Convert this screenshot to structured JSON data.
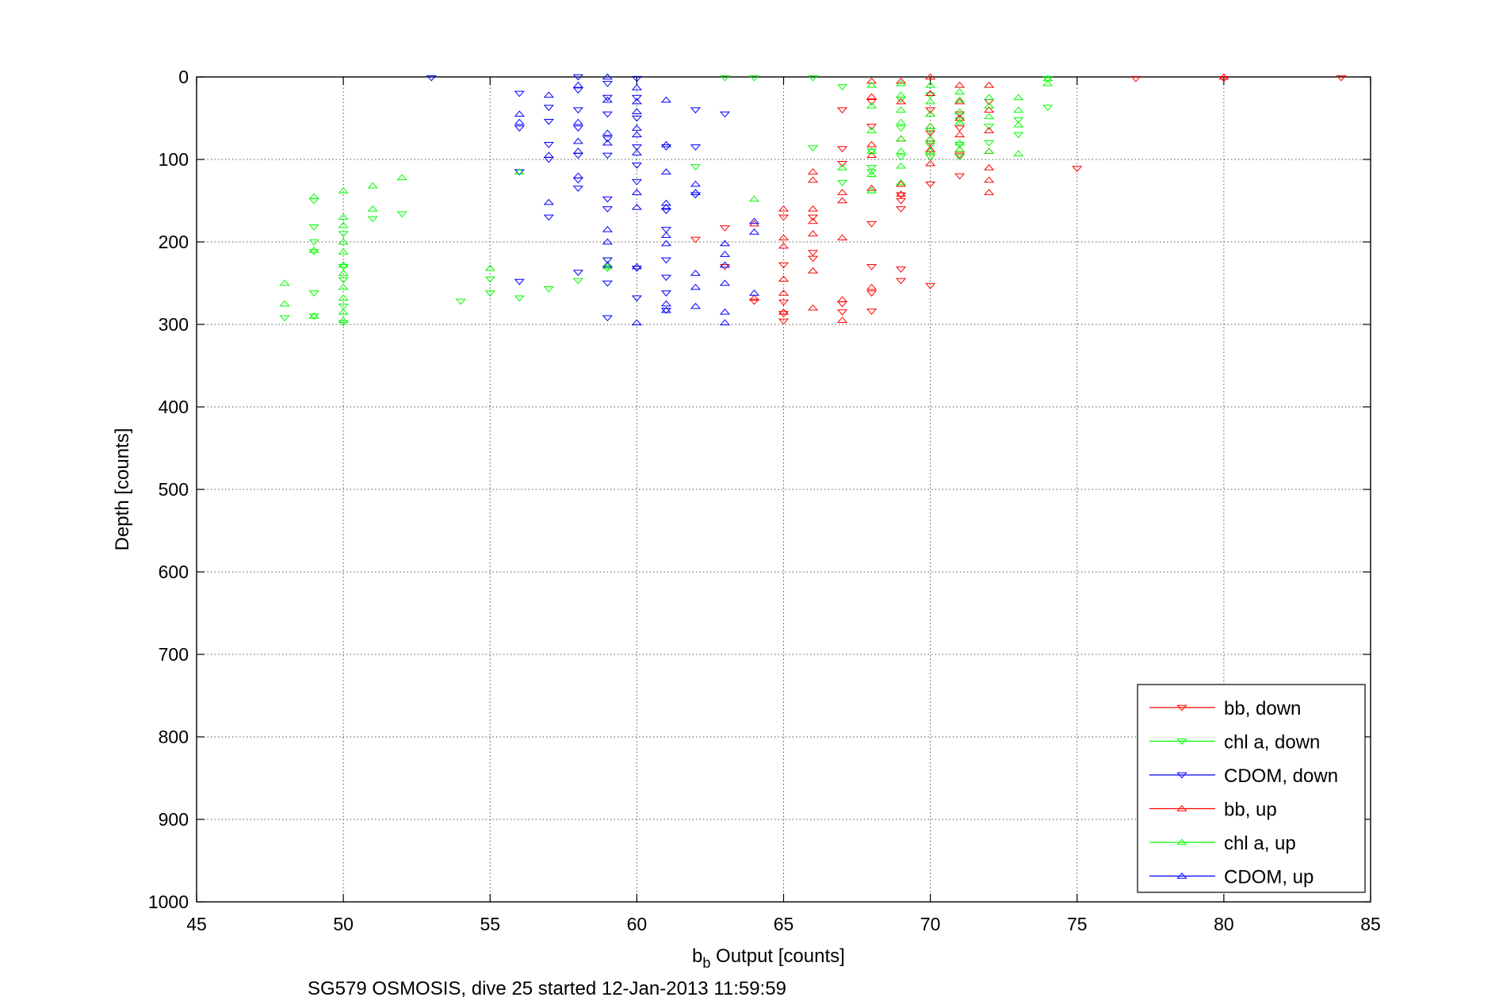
{
  "chart_data": {
    "type": "scatter",
    "xlabel_base": "b",
    "xlabel_sub": "b",
    "xlabel_rest": " Output [counts]",
    "ylabel": "Depth [counts]",
    "caption": "SG579 OSMOSIS, dive 25 started 12-Jan-2013 11:59:59",
    "xlim": [
      45,
      85
    ],
    "ylim": [
      0,
      1000
    ],
    "y_reversed": true,
    "grid": true,
    "legend_position": "bottom-right",
    "x_ticks": [
      "45",
      "50",
      "55",
      "60",
      "65",
      "70",
      "75",
      "80",
      "85"
    ],
    "y_ticks": [
      "0",
      "100",
      "200",
      "300",
      "400",
      "500",
      "600",
      "700",
      "800",
      "900",
      "1000"
    ],
    "series": [
      {
        "name": "bb, down",
        "color": "#ff0000",
        "marker": "down",
        "points": [
          [
            84,
            1
          ],
          [
            80,
            2
          ],
          [
            77,
            2
          ],
          [
            75,
            111
          ],
          [
            72,
            30
          ],
          [
            71,
            45
          ],
          [
            71,
            62
          ],
          [
            71,
            95
          ],
          [
            71,
            120
          ],
          [
            70,
            40
          ],
          [
            70,
            68
          ],
          [
            70,
            80
          ],
          [
            70,
            97
          ],
          [
            70,
            130
          ],
          [
            70,
            253
          ],
          [
            69,
            143
          ],
          [
            69,
            150
          ],
          [
            69,
            160
          ],
          [
            69,
            233
          ],
          [
            69,
            247
          ],
          [
            68,
            30
          ],
          [
            68,
            60
          ],
          [
            68,
            178
          ],
          [
            68,
            230
          ],
          [
            68,
            262
          ],
          [
            68,
            284
          ],
          [
            67,
            40
          ],
          [
            67,
            87
          ],
          [
            67,
            105
          ],
          [
            67,
            275
          ],
          [
            67,
            285
          ],
          [
            66,
            170
          ],
          [
            66,
            213
          ],
          [
            66,
            220
          ],
          [
            65,
            170
          ],
          [
            65,
            228
          ],
          [
            65,
            273
          ],
          [
            65,
            287
          ],
          [
            65,
            296
          ],
          [
            64,
            272
          ],
          [
            63,
            183
          ],
          [
            63,
            230
          ],
          [
            62,
            197
          ]
        ]
      },
      {
        "name": "chl a, down",
        "color": "#00ff00",
        "marker": "down",
        "points": [
          [
            74,
            2
          ],
          [
            74,
            37
          ],
          [
            73,
            52
          ],
          [
            73,
            70
          ],
          [
            72,
            60
          ],
          [
            72,
            80
          ],
          [
            71,
            52
          ],
          [
            71,
            82
          ],
          [
            71,
            97
          ],
          [
            70,
            22
          ],
          [
            70,
            65
          ],
          [
            70,
            83
          ],
          [
            70,
            97
          ],
          [
            69,
            27
          ],
          [
            69,
            62
          ],
          [
            69,
            97
          ],
          [
            68,
            90
          ],
          [
            68,
            110
          ],
          [
            68,
            115
          ],
          [
            67,
            12
          ],
          [
            67,
            128
          ],
          [
            66,
            1
          ],
          [
            66,
            86
          ],
          [
            64,
            1
          ],
          [
            63,
            1
          ],
          [
            62,
            109
          ],
          [
            59,
            222
          ],
          [
            59,
            232
          ],
          [
            58,
            247
          ],
          [
            57,
            257
          ],
          [
            56,
            268
          ],
          [
            55,
            245
          ],
          [
            55,
            262
          ],
          [
            54,
            272
          ],
          [
            52,
            166
          ],
          [
            51,
            172
          ],
          [
            50,
            190
          ],
          [
            50,
            230
          ],
          [
            50,
            246
          ],
          [
            50,
            278
          ],
          [
            50,
            298
          ],
          [
            49,
            150
          ],
          [
            49,
            182
          ],
          [
            49,
            200
          ],
          [
            49,
            212
          ],
          [
            49,
            262
          ],
          [
            49,
            290
          ],
          [
            48,
            292
          ]
        ]
      },
      {
        "name": "CDOM, down",
        "color": "#0000ff",
        "marker": "down",
        "points": [
          [
            63,
            45
          ],
          [
            62,
            40
          ],
          [
            62,
            85
          ],
          [
            62,
            143
          ],
          [
            61,
            85
          ],
          [
            61,
            162
          ],
          [
            61,
            185
          ],
          [
            61,
            222
          ],
          [
            61,
            243
          ],
          [
            61,
            262
          ],
          [
            61,
            283
          ],
          [
            60,
            2
          ],
          [
            60,
            25
          ],
          [
            60,
            50
          ],
          [
            60,
            85
          ],
          [
            60,
            107
          ],
          [
            60,
            127
          ],
          [
            60,
            232
          ],
          [
            60,
            268
          ],
          [
            59,
            8
          ],
          [
            59,
            25
          ],
          [
            59,
            45
          ],
          [
            59,
            75
          ],
          [
            59,
            95
          ],
          [
            59,
            148
          ],
          [
            59,
            160
          ],
          [
            59,
            222
          ],
          [
            59,
            250
          ],
          [
            59,
            292
          ],
          [
            58,
            0
          ],
          [
            58,
            16
          ],
          [
            58,
            40
          ],
          [
            58,
            62
          ],
          [
            58,
            95
          ],
          [
            58,
            125
          ],
          [
            58,
            135
          ],
          [
            58,
            237
          ],
          [
            57,
            37
          ],
          [
            57,
            54
          ],
          [
            57,
            82
          ],
          [
            57,
            100
          ],
          [
            57,
            170
          ],
          [
            56,
            20
          ],
          [
            56,
            62
          ],
          [
            56,
            115
          ],
          [
            56,
            248
          ],
          [
            53,
            1
          ]
        ]
      },
      {
        "name": "bb, up",
        "color": "#ff0000",
        "marker": "up",
        "points": [
          [
            80,
            0
          ],
          [
            72,
            10
          ],
          [
            72,
            40
          ],
          [
            72,
            65
          ],
          [
            72,
            90
          ],
          [
            72,
            110
          ],
          [
            72,
            125
          ],
          [
            72,
            140
          ],
          [
            71,
            10
          ],
          [
            71,
            30
          ],
          [
            71,
            50
          ],
          [
            71,
            70
          ],
          [
            71,
            88
          ],
          [
            70,
            0
          ],
          [
            70,
            20
          ],
          [
            70,
            45
          ],
          [
            70,
            60
          ],
          [
            70,
            75
          ],
          [
            70,
            88
          ],
          [
            70,
            105
          ],
          [
            69,
            5
          ],
          [
            69,
            30
          ],
          [
            69,
            75
          ],
          [
            69,
            130
          ],
          [
            69,
            142
          ],
          [
            68,
            5
          ],
          [
            68,
            24
          ],
          [
            68,
            82
          ],
          [
            68,
            95
          ],
          [
            68,
            135
          ],
          [
            68,
            255
          ],
          [
            67,
            140
          ],
          [
            67,
            150
          ],
          [
            67,
            195
          ],
          [
            67,
            270
          ],
          [
            67,
            295
          ],
          [
            66,
            115
          ],
          [
            66,
            125
          ],
          [
            66,
            160
          ],
          [
            66,
            175
          ],
          [
            66,
            190
          ],
          [
            66,
            235
          ],
          [
            66,
            280
          ],
          [
            65,
            160
          ],
          [
            65,
            195
          ],
          [
            65,
            205
          ],
          [
            65,
            245
          ],
          [
            65,
            262
          ],
          [
            65,
            285
          ],
          [
            64,
            268
          ],
          [
            64,
            178
          ]
        ]
      },
      {
        "name": "chl a, up",
        "color": "#00ff00",
        "marker": "up",
        "points": [
          [
            74,
            2
          ],
          [
            74,
            8
          ],
          [
            73,
            25
          ],
          [
            73,
            40
          ],
          [
            73,
            58
          ],
          [
            73,
            93
          ],
          [
            72,
            25
          ],
          [
            72,
            35
          ],
          [
            72,
            48
          ],
          [
            72,
            90
          ],
          [
            71,
            18
          ],
          [
            71,
            28
          ],
          [
            71,
            42
          ],
          [
            71,
            55
          ],
          [
            71,
            80
          ],
          [
            71,
            88
          ],
          [
            70,
            10
          ],
          [
            70,
            30
          ],
          [
            70,
            45
          ],
          [
            70,
            60
          ],
          [
            70,
            75
          ],
          [
            70,
            90
          ],
          [
            69,
            8
          ],
          [
            69,
            22
          ],
          [
            69,
            40
          ],
          [
            69,
            55
          ],
          [
            69,
            75
          ],
          [
            69,
            90
          ],
          [
            69,
            108
          ],
          [
            69,
            128
          ],
          [
            68,
            10
          ],
          [
            68,
            35
          ],
          [
            68,
            65
          ],
          [
            68,
            90
          ],
          [
            68,
            118
          ],
          [
            68,
            138
          ],
          [
            67,
            110
          ],
          [
            64,
            148
          ],
          [
            59,
            230
          ],
          [
            56,
            115
          ],
          [
            55,
            232
          ],
          [
            52,
            122
          ],
          [
            51,
            132
          ],
          [
            51,
            160
          ],
          [
            50,
            138
          ],
          [
            50,
            170
          ],
          [
            50,
            180
          ],
          [
            50,
            200
          ],
          [
            50,
            212
          ],
          [
            50,
            228
          ],
          [
            50,
            238
          ],
          [
            50,
            255
          ],
          [
            50,
            268
          ],
          [
            50,
            285
          ],
          [
            50,
            295
          ],
          [
            49,
            145
          ],
          [
            49,
            210
          ],
          [
            49,
            290
          ],
          [
            48,
            250
          ],
          [
            48,
            275
          ]
        ]
      },
      {
        "name": "CDOM, up",
        "color": "#0000ff",
        "marker": "up",
        "points": [
          [
            64,
            175
          ],
          [
            64,
            188
          ],
          [
            64,
            262
          ],
          [
            63,
            202
          ],
          [
            63,
            215
          ],
          [
            63,
            228
          ],
          [
            63,
            250
          ],
          [
            63,
            285
          ],
          [
            63,
            298
          ],
          [
            62,
            130
          ],
          [
            62,
            140
          ],
          [
            62,
            238
          ],
          [
            62,
            255
          ],
          [
            62,
            278
          ],
          [
            61,
            28
          ],
          [
            61,
            82
          ],
          [
            61,
            115
          ],
          [
            61,
            153
          ],
          [
            61,
            158
          ],
          [
            61,
            192
          ],
          [
            61,
            202
          ],
          [
            61,
            275
          ],
          [
            61,
            283
          ],
          [
            60,
            13
          ],
          [
            60,
            30
          ],
          [
            60,
            42
          ],
          [
            60,
            62
          ],
          [
            60,
            70
          ],
          [
            60,
            92
          ],
          [
            60,
            140
          ],
          [
            60,
            158
          ],
          [
            60,
            230
          ],
          [
            60,
            298
          ],
          [
            59,
            0
          ],
          [
            59,
            28
          ],
          [
            59,
            68
          ],
          [
            59,
            80
          ],
          [
            59,
            185
          ],
          [
            59,
            200
          ],
          [
            59,
            228
          ],
          [
            58,
            10
          ],
          [
            58,
            55
          ],
          [
            58,
            78
          ],
          [
            58,
            90
          ],
          [
            58,
            120
          ],
          [
            57,
            22
          ],
          [
            57,
            95
          ],
          [
            57,
            152
          ],
          [
            56,
            45
          ],
          [
            56,
            55
          ]
        ]
      }
    ]
  }
}
